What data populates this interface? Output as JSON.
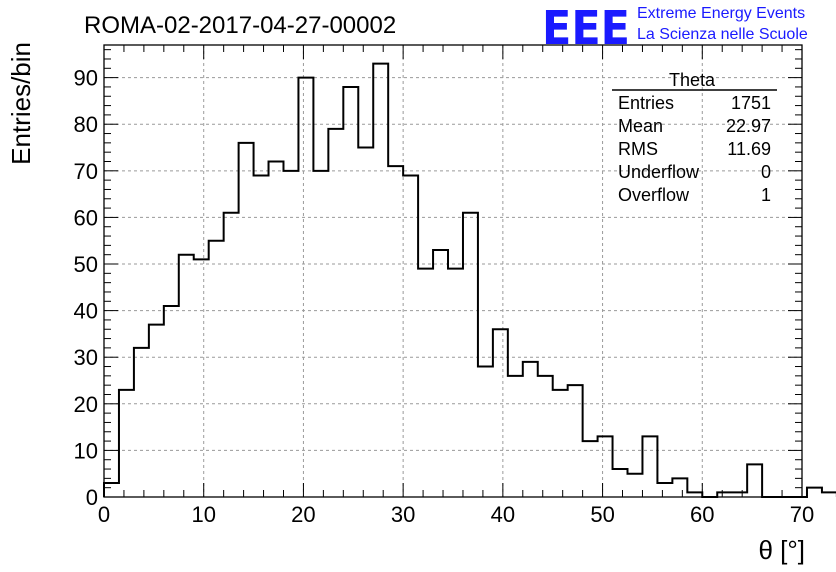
{
  "header": {
    "run_title": "ROMA-02-2017-04-27-00002",
    "logo_mark": "EEE",
    "logo_line1": "Extreme Energy Events",
    "logo_line2": "La Scienza nelle Scuole",
    "logo_color": "#1a1aff"
  },
  "stats_box": {
    "title": "Theta",
    "rows": [
      {
        "label": "Entries",
        "value": "1751"
      },
      {
        "label": "Mean",
        "value": "22.97"
      },
      {
        "label": "RMS",
        "value": "11.69"
      },
      {
        "label": "Underflow",
        "value": "0"
      },
      {
        "label": "Overflow",
        "value": "1"
      }
    ]
  },
  "chart_data": {
    "type": "bar",
    "style": "step-histogram",
    "title": "ROMA-02-2017-04-27-00002",
    "xlabel": "θ [°]",
    "ylabel": "Entries/bin",
    "xlim": [
      0,
      70
    ],
    "ylim": [
      0,
      97
    ],
    "xticks": [
      0,
      10,
      20,
      30,
      40,
      50,
      60,
      70
    ],
    "yticks": [
      0,
      10,
      20,
      30,
      40,
      50,
      60,
      70,
      80,
      90
    ],
    "grid": true,
    "bin_width": 1.5,
    "bin_edges_start": 0,
    "values": [
      3,
      23,
      32,
      37,
      41,
      52,
      51,
      55,
      61,
      76,
      69,
      72,
      70,
      90,
      70,
      79,
      88,
      75,
      93,
      71,
      69,
      49,
      53,
      49,
      61,
      28,
      36,
      26,
      29,
      26,
      23,
      24,
      12,
      13,
      6,
      5,
      13,
      3,
      4,
      1,
      0,
      1,
      1,
      7,
      0,
      0,
      0,
      2,
      1
    ]
  }
}
